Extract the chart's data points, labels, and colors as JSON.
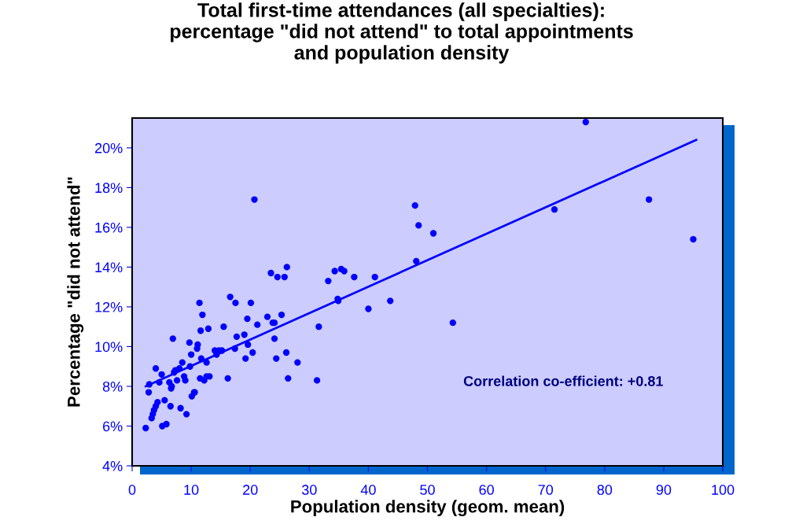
{
  "chart_data": {
    "type": "scatter",
    "title": "Total first-time attendances (all specialties):\npercentage \"did not attend\" to total appointments\nand population density",
    "xlabel": "Population density (geom. mean)",
    "ylabel": "Percentage \"did not attend\"",
    "xlim": [
      0,
      100
    ],
    "ylim": [
      4,
      21.5
    ],
    "xticks": [
      0,
      10,
      20,
      30,
      40,
      50,
      60,
      70,
      80,
      90,
      100
    ],
    "yticks": [
      {
        "value": 4,
        "label": "4%"
      },
      {
        "value": 6,
        "label": "6%"
      },
      {
        "value": 8,
        "label": "8%"
      },
      {
        "value": 10,
        "label": "10%"
      },
      {
        "value": 12,
        "label": "12%"
      },
      {
        "value": 14,
        "label": "14%"
      },
      {
        "value": 16,
        "label": "16%"
      },
      {
        "value": 18,
        "label": "18%"
      },
      {
        "value": 20,
        "label": "20%"
      }
    ],
    "grid": false,
    "legend": false,
    "series": [
      {
        "marker": "circle",
        "color": "#0000ff",
        "x": [
          2.3,
          2.9,
          2.8,
          3.3,
          3.5,
          3.7,
          4.0,
          4.0,
          4.3,
          4.6,
          5.0,
          5.1,
          5.5,
          5.8,
          6.3,
          6.5,
          6.6,
          6.7,
          6.9,
          7.1,
          7.3,
          7.6,
          8.0,
          8.2,
          8.5,
          8.8,
          9.0,
          9.2,
          9.7,
          9.8,
          10.0,
          10.1,
          10.5,
          10.6,
          11.1,
          11.0,
          11.4,
          11.5,
          11.6,
          11.7,
          11.9,
          12.2,
          12.6,
          12.6,
          12.9,
          13.1,
          14.0,
          14.3,
          14.7,
          15.2,
          15.5,
          16.2,
          16.6,
          17.4,
          17.5,
          17.7,
          19.0,
          19.2,
          19.5,
          19.6,
          20.1,
          20.4,
          20.7,
          21.2,
          22.9,
          23.5,
          23.8,
          24.1,
          24.1,
          24.4,
          24.6,
          25.3,
          25.8,
          26.1,
          26.2,
          26.4,
          28.0,
          31.3,
          31.6,
          33.2,
          34.3,
          34.8,
          34.9,
          35.4,
          35.9,
          37.6,
          40.0,
          41.1,
          43.7,
          47.9,
          48.1,
          48.5,
          51.0,
          54.3,
          71.5,
          76.8,
          87.5,
          95.0
        ],
        "values": [
          5.9,
          8.1,
          7.7,
          6.4,
          6.6,
          6.8,
          7.0,
          8.9,
          7.2,
          8.2,
          8.6,
          6.0,
          7.3,
          6.1,
          8.2,
          7.0,
          7.9,
          8.0,
          10.4,
          8.7,
          8.8,
          8.3,
          8.9,
          6.9,
          9.2,
          8.5,
          8.3,
          6.6,
          10.2,
          9.0,
          9.6,
          7.5,
          7.7,
          7.7,
          10.1,
          9.9,
          12.2,
          8.4,
          10.8,
          9.4,
          11.6,
          8.3,
          9.2,
          8.5,
          10.9,
          8.5,
          9.8,
          9.6,
          9.8,
          9.8,
          11.0,
          8.4,
          12.5,
          9.9,
          12.2,
          10.5,
          10.6,
          9.4,
          11.4,
          10.1,
          12.2,
          9.7,
          17.4,
          11.1,
          11.5,
          13.7,
          11.2,
          11.2,
          10.4,
          9.4,
          13.5,
          11.6,
          13.5,
          9.7,
          14.0,
          8.4,
          9.2,
          8.3,
          11.0,
          13.3,
          13.8,
          12.4,
          12.3,
          13.9,
          13.8,
          13.5,
          11.9,
          13.5,
          12.3,
          17.1,
          14.3,
          16.1,
          15.7,
          11.2,
          16.9,
          21.3,
          17.4,
          15.4
        ]
      },
      {
        "type": "line",
        "marker": "none",
        "color": "#0000ff",
        "x": [
          2.3,
          95.5
        ],
        "values": [
          8.0,
          20.4
        ]
      }
    ],
    "annotations": [
      "Correlation co-efficient: +0.81"
    ]
  }
}
